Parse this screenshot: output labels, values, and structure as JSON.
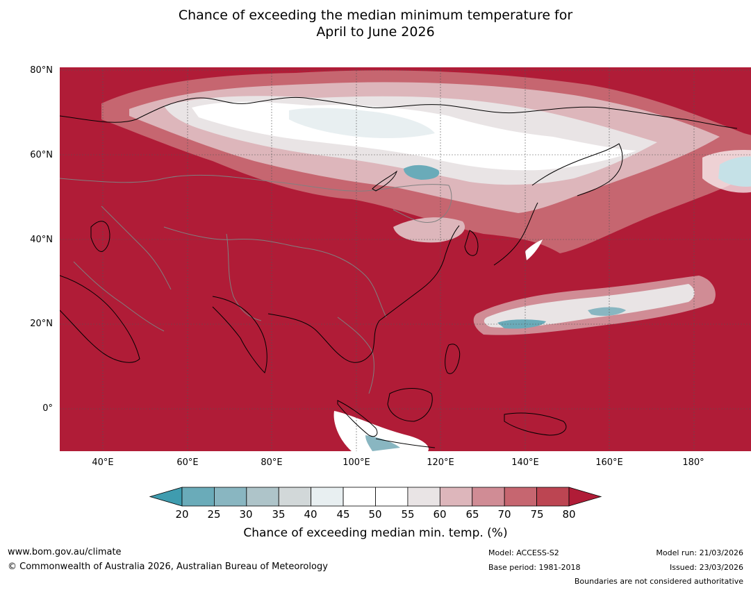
{
  "title": {
    "line1": "Chance of exceeding the median minimum temperature for",
    "line2": "April to June 2026"
  },
  "map": {
    "lat_labels": [
      "80°N",
      "60°N",
      "40°N",
      "20°N",
      "0°"
    ],
    "lon_labels": [
      "40°E",
      "60°E",
      "80°E",
      "100°E",
      "120°E",
      "140°E",
      "160°E",
      "180°"
    ],
    "colors": {
      "background": "#b01c37",
      "coastline": "#000000",
      "border": "#808080",
      "grid": "#555555"
    }
  },
  "colorbar": {
    "ticks": [
      "20",
      "25",
      "30",
      "35",
      "40",
      "45",
      "50",
      "55",
      "60",
      "65",
      "70",
      "75",
      "80"
    ],
    "colors": [
      "#3f9caf",
      "#6aabb9",
      "#89b6c1",
      "#aec4c9",
      "#d2d8d9",
      "#e8eff1",
      "#ffffff",
      "#ffffff",
      "#e9e4e5",
      "#ddb6bb",
      "#d08c95",
      "#c66670",
      "#bc4552",
      "#b01c37"
    ],
    "title": "Chance of exceeding median min. temp. (%)"
  },
  "footer": {
    "website": "www.bom.gov.au/climate",
    "copyright": "© Commonwealth of Australia 2026, Australian Bureau of Meteorology",
    "model": "Model: ACCESS-S2",
    "base_period": "Base period: 1981-2018",
    "model_run": "Model run: 21/03/2026",
    "issued": "Issued: 23/03/2026",
    "disclaimer": "Boundaries are not considered authoritative"
  }
}
